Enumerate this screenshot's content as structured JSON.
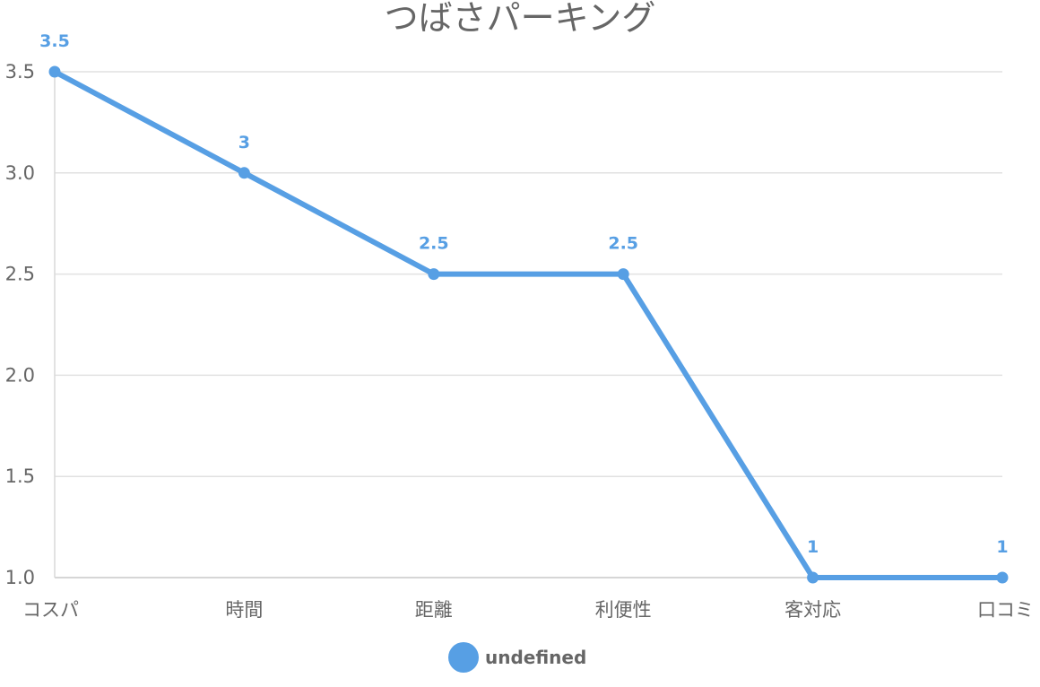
{
  "chart_data": {
    "type": "line",
    "title": "つばさパーキング",
    "categories": [
      "コスパ",
      "時間",
      "距離",
      "利便性",
      "客対応",
      "口コミ"
    ],
    "series": [
      {
        "name": "undefined",
        "values": [
          3.5,
          3,
          2.5,
          2.5,
          1,
          1
        ],
        "color": "#579FE4"
      }
    ],
    "y_ticks": [
      "1.0",
      "1.5",
      "2.0",
      "2.5",
      "3.0",
      "3.5"
    ],
    "value_labels": [
      "3.5",
      "3",
      "2.5",
      "2.5",
      "1",
      "1"
    ],
    "ylim": [
      1.0,
      3.5
    ],
    "grid": true,
    "legend_position": "bottom"
  }
}
